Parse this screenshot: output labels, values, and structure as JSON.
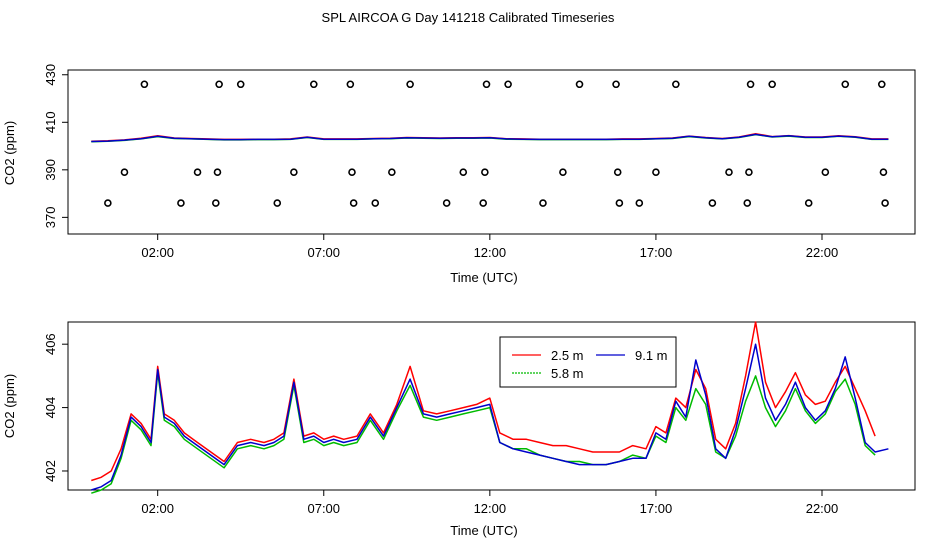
{
  "figure_title": "SPL AIRCOA G  Day 141218  Calibrated Timeseries",
  "chart_data": [
    {
      "type": "line",
      "xlabel": "Time (UTC)",
      "ylabel": "CO2 (ppm)",
      "x_units": "hours UTC",
      "x_tick_labels": [
        "02:00",
        "07:00",
        "12:00",
        "17:00",
        "22:00"
      ],
      "x_ticks": [
        2,
        7,
        12,
        17,
        22
      ],
      "xlim": [
        -0.7,
        24.8
      ],
      "y_tick_labels": [
        "370",
        "390",
        "410",
        "430"
      ],
      "y_ticks": [
        370,
        390,
        410,
        430
      ],
      "ylim": [
        363,
        432
      ],
      "grid": false,
      "legend": "none",
      "series": [
        {
          "color": "#ff0000",
          "x": [
            0,
            0.5,
            1,
            1.5,
            2,
            2.5,
            3,
            3.5,
            4,
            4.5,
            5,
            5.5,
            6,
            6.5,
            7,
            7.5,
            8,
            8.5,
            9,
            9.5,
            10,
            10.5,
            11,
            11.5,
            12,
            12.5,
            13,
            13.5,
            14,
            14.5,
            15,
            15.5,
            16,
            16.5,
            17,
            17.5,
            18,
            18.5,
            19,
            19.5,
            20,
            20.5,
            21,
            21.5,
            22,
            22.5,
            23,
            23.5,
            24
          ],
          "values": [
            402,
            402.2,
            402.6,
            403.3,
            404.3,
            403.4,
            403.2,
            403,
            402.8,
            402.8,
            402.9,
            402.9,
            403.0,
            403.8,
            403.0,
            403.0,
            403.0,
            403.2,
            403.3,
            403.6,
            403.5,
            403.4,
            403.5,
            403.5,
            403.6,
            403.1,
            403.0,
            402.9,
            402.9,
            402.9,
            402.9,
            402.9,
            403.0,
            403.0,
            403.2,
            403.4,
            404.2,
            403.6,
            403.2,
            403.8,
            405.2,
            404.0,
            404.4,
            403.8,
            403.8,
            404.3,
            403.9,
            403.0,
            403.0
          ]
        },
        {
          "color": "#00bb00",
          "x": [
            0,
            0.5,
            1,
            1.5,
            2,
            2.5,
            3,
            3.5,
            4,
            4.5,
            5,
            5.5,
            6,
            6.5,
            7,
            7.5,
            8,
            8.5,
            9,
            9.5,
            10,
            10.5,
            11,
            11.5,
            12,
            12.5,
            13,
            13.5,
            14,
            14.5,
            15,
            15.5,
            16,
            16.5,
            17,
            17.5,
            18,
            18.5,
            19,
            19.5,
            20,
            20.5,
            21,
            21.5,
            22,
            22.5,
            23,
            23.5,
            24
          ],
          "values": [
            401.8,
            402,
            402.4,
            403,
            404,
            403.2,
            403,
            402.8,
            402.6,
            402.6,
            402.7,
            402.7,
            402.8,
            403.6,
            402.8,
            402.8,
            402.8,
            403.0,
            403.1,
            403.4,
            403.3,
            403.2,
            403.3,
            403.3,
            403.4,
            402.9,
            402.8,
            402.7,
            402.7,
            402.7,
            402.7,
            402.7,
            402.8,
            402.8,
            403.0,
            403.2,
            404.0,
            403.4,
            403.0,
            403.6,
            404.8,
            403.8,
            404.2,
            403.6,
            403.6,
            404.1,
            403.7,
            402.8,
            402.8
          ]
        },
        {
          "color": "#0000cc",
          "x": [
            0,
            0.5,
            1,
            1.5,
            2,
            2.5,
            3,
            3.5,
            4,
            4.5,
            5,
            5.5,
            6,
            6.5,
            7,
            7.5,
            8,
            8.5,
            9,
            9.5,
            10,
            10.5,
            11,
            11.5,
            12,
            12.5,
            13,
            13.5,
            14,
            14.5,
            15,
            15.5,
            16,
            16.5,
            17,
            17.5,
            18,
            18.5,
            19,
            19.5,
            20,
            20.5,
            21,
            21.5,
            22,
            22.5,
            23,
            23.5,
            24
          ],
          "values": [
            401.9,
            402.1,
            402.5,
            403.1,
            404.1,
            403.3,
            403.1,
            402.9,
            402.7,
            402.7,
            402.8,
            402.8,
            402.9,
            403.7,
            402.9,
            402.9,
            402.9,
            403.1,
            403.2,
            403.5,
            403.4,
            403.3,
            403.4,
            403.4,
            403.5,
            403.0,
            402.9,
            402.8,
            402.8,
            402.8,
            402.8,
            402.8,
            402.9,
            402.9,
            403.1,
            403.3,
            404.1,
            403.5,
            403.1,
            403.7,
            404.9,
            403.9,
            404.3,
            403.7,
            403.7,
            404.2,
            403.8,
            402.9,
            402.9
          ]
        }
      ],
      "markers": [
        {
          "symbol": "circle",
          "values": [
            {
              "x": 0.5,
              "y": 376
            },
            {
              "x": 1.0,
              "y": 389
            },
            {
              "x": 1.6,
              "y": 426
            },
            {
              "x": 2.7,
              "y": 376
            },
            {
              "x": 3.2,
              "y": 389
            },
            {
              "x": 3.75,
              "y": 376
            },
            {
              "x": 3.8,
              "y": 389
            },
            {
              "x": 3.85,
              "y": 426
            },
            {
              "x": 4.5,
              "y": 426
            },
            {
              "x": 5.6,
              "y": 376
            },
            {
              "x": 6.1,
              "y": 389
            },
            {
              "x": 6.7,
              "y": 426
            },
            {
              "x": 7.8,
              "y": 426
            },
            {
              "x": 7.85,
              "y": 389
            },
            {
              "x": 7.9,
              "y": 376
            },
            {
              "x": 8.55,
              "y": 376
            },
            {
              "x": 9.05,
              "y": 389
            },
            {
              "x": 9.6,
              "y": 426
            },
            {
              "x": 10.7,
              "y": 376
            },
            {
              "x": 11.2,
              "y": 389
            },
            {
              "x": 11.8,
              "y": 376
            },
            {
              "x": 11.85,
              "y": 389
            },
            {
              "x": 11.9,
              "y": 426
            },
            {
              "x": 12.55,
              "y": 426
            },
            {
              "x": 13.6,
              "y": 376
            },
            {
              "x": 14.2,
              "y": 389
            },
            {
              "x": 14.7,
              "y": 426
            },
            {
              "x": 15.8,
              "y": 426
            },
            {
              "x": 15.85,
              "y": 389
            },
            {
              "x": 15.9,
              "y": 376
            },
            {
              "x": 16.5,
              "y": 376
            },
            {
              "x": 17.0,
              "y": 389
            },
            {
              "x": 17.6,
              "y": 426
            },
            {
              "x": 18.7,
              "y": 376
            },
            {
              "x": 19.2,
              "y": 389
            },
            {
              "x": 19.75,
              "y": 376
            },
            {
              "x": 19.8,
              "y": 389
            },
            {
              "x": 19.85,
              "y": 426
            },
            {
              "x": 20.5,
              "y": 426
            },
            {
              "x": 21.6,
              "y": 376
            },
            {
              "x": 22.1,
              "y": 389
            },
            {
              "x": 22.7,
              "y": 426
            },
            {
              "x": 23.8,
              "y": 426
            },
            {
              "x": 23.85,
              "y": 389
            },
            {
              "x": 23.9,
              "y": 376
            }
          ]
        }
      ]
    },
    {
      "type": "line",
      "xlabel": "Time (UTC)",
      "ylabel": "CO2 (ppm)",
      "x_units": "hours UTC",
      "x_tick_labels": [
        "02:00",
        "07:00",
        "12:00",
        "17:00",
        "22:00"
      ],
      "x_ticks": [
        2,
        7,
        12,
        17,
        22
      ],
      "xlim": [
        -0.7,
        24.8
      ],
      "y_tick_labels": [
        "402",
        "404",
        "406"
      ],
      "y_ticks": [
        402,
        404,
        406
      ],
      "ylim": [
        401.4,
        406.7
      ],
      "grid": false,
      "legend": "top-right inside",
      "series": [
        {
          "name": "2.5 m",
          "color": "#ff0000",
          "x": [
            0,
            0.3,
            0.6,
            0.9,
            1.2,
            1.5,
            1.8,
            2.0,
            2.2,
            2.5,
            2.8,
            3.2,
            3.6,
            4.0,
            4.4,
            4.8,
            5.2,
            5.5,
            5.8,
            6.1,
            6.4,
            6.7,
            7.0,
            7.3,
            7.6,
            8.0,
            8.4,
            8.8,
            9.2,
            9.6,
            10.0,
            10.4,
            10.8,
            11.2,
            11.6,
            12.0,
            12.3,
            12.7,
            13.1,
            13.5,
            13.9,
            14.3,
            14.7,
            15.1,
            15.5,
            15.9,
            16.3,
            16.7,
            17.0,
            17.3,
            17.6,
            17.9,
            18.2,
            18.5,
            18.8,
            19.1,
            19.4,
            19.7,
            20.0,
            20.3,
            20.6,
            20.9,
            21.2,
            21.5,
            21.8,
            22.1,
            22.4,
            22.7,
            23.0,
            23.3,
            23.6
          ],
          "values": [
            401.7,
            401.8,
            402,
            402.7,
            403.8,
            403.5,
            403,
            405.3,
            403.8,
            403.6,
            403.2,
            402.9,
            402.6,
            402.3,
            402.9,
            403,
            402.9,
            403,
            403.2,
            404.9,
            403.1,
            403.2,
            403,
            403.1,
            403.0,
            403.1,
            403.8,
            403.2,
            404.1,
            405.3,
            403.9,
            403.8,
            403.9,
            404.0,
            404.1,
            404.3,
            403.2,
            403.0,
            403.0,
            402.9,
            402.8,
            402.8,
            402.7,
            402.6,
            402.6,
            402.6,
            402.8,
            402.7,
            403.4,
            403.2,
            404.3,
            404.0,
            405.2,
            404.6,
            403.0,
            402.7,
            403.5,
            405.0,
            406.7,
            404.8,
            404.0,
            404.5,
            405.1,
            404.4,
            404.1,
            404.2,
            404.8,
            405.3,
            404.6,
            403.9,
            403.1
          ]
        },
        {
          "name": "5.8 m",
          "color": "#00bb00",
          "x": [
            0,
            0.3,
            0.6,
            0.9,
            1.2,
            1.5,
            1.8,
            2.0,
            2.2,
            2.5,
            2.8,
            3.2,
            3.6,
            4.0,
            4.4,
            4.8,
            5.2,
            5.5,
            5.8,
            6.1,
            6.4,
            6.7,
            7.0,
            7.3,
            7.6,
            8.0,
            8.4,
            8.8,
            9.2,
            9.6,
            10.0,
            10.4,
            10.8,
            11.2,
            11.6,
            12.0,
            12.3,
            12.7,
            13.1,
            13.5,
            13.9,
            14.3,
            14.7,
            15.1,
            15.5,
            15.9,
            16.3,
            16.7,
            17.0,
            17.3,
            17.6,
            17.9,
            18.2,
            18.5,
            18.8,
            19.1,
            19.4,
            19.7,
            20.0,
            20.3,
            20.6,
            20.9,
            21.2,
            21.5,
            21.8,
            22.1,
            22.4,
            22.7,
            23.0,
            23.3,
            23.6
          ],
          "values": [
            401.3,
            401.4,
            401.6,
            402.4,
            403.6,
            403.3,
            402.8,
            405.1,
            403.6,
            403.4,
            403.0,
            402.7,
            402.4,
            402.1,
            402.7,
            402.8,
            402.7,
            402.8,
            403.0,
            404.7,
            402.9,
            403.0,
            402.8,
            402.9,
            402.8,
            402.9,
            403.6,
            403.0,
            403.9,
            404.7,
            403.7,
            403.6,
            403.7,
            403.8,
            403.9,
            404.0,
            402.9,
            402.7,
            402.7,
            402.5,
            402.4,
            402.3,
            402.3,
            402.2,
            402.2,
            402.3,
            402.5,
            402.4,
            403.1,
            402.9,
            404.0,
            403.6,
            404.6,
            404.1,
            402.6,
            402.4,
            403.1,
            404.2,
            405.0,
            404.0,
            403.4,
            403.9,
            404.6,
            403.9,
            403.5,
            403.8,
            404.5,
            404.9,
            404.1,
            402.8,
            402.5
          ]
        },
        {
          "name": "9.1 m",
          "color": "#0000cc",
          "x": [
            0,
            0.3,
            0.6,
            0.9,
            1.2,
            1.5,
            1.8,
            2.0,
            2.2,
            2.5,
            2.8,
            3.2,
            3.6,
            4.0,
            4.4,
            4.8,
            5.2,
            5.5,
            5.8,
            6.1,
            6.4,
            6.7,
            7.0,
            7.3,
            7.6,
            8.0,
            8.4,
            8.8,
            9.2,
            9.6,
            10.0,
            10.4,
            10.8,
            11.2,
            11.6,
            12.0,
            12.3,
            12.7,
            13.1,
            13.5,
            13.9,
            14.3,
            14.7,
            15.1,
            15.5,
            15.9,
            16.3,
            16.7,
            17.0,
            17.3,
            17.6,
            17.9,
            18.2,
            18.5,
            18.8,
            19.1,
            19.4,
            19.7,
            20.0,
            20.3,
            20.6,
            20.9,
            21.2,
            21.5,
            21.8,
            22.1,
            22.4,
            22.7,
            23.0,
            23.3,
            23.6,
            24.0
          ],
          "values": [
            401.4,
            401.5,
            401.7,
            402.5,
            403.7,
            403.4,
            402.9,
            405.2,
            403.7,
            403.5,
            403.1,
            402.8,
            402.5,
            402.2,
            402.8,
            402.9,
            402.8,
            402.9,
            403.1,
            404.8,
            403.0,
            403.1,
            402.9,
            403.0,
            402.9,
            403.0,
            403.7,
            403.1,
            404.0,
            404.9,
            403.8,
            403.7,
            403.8,
            403.9,
            404.0,
            404.1,
            402.9,
            402.7,
            402.6,
            402.5,
            402.4,
            402.3,
            402.2,
            402.2,
            402.2,
            402.3,
            402.4,
            402.4,
            403.2,
            403.0,
            404.2,
            403.7,
            405.5,
            404.4,
            402.7,
            402.4,
            403.3,
            404.6,
            406.0,
            404.3,
            403.6,
            404.1,
            404.8,
            404.0,
            403.6,
            403.9,
            404.6,
            405.6,
            404.3,
            402.9,
            402.6,
            402.7
          ]
        }
      ]
    }
  ]
}
